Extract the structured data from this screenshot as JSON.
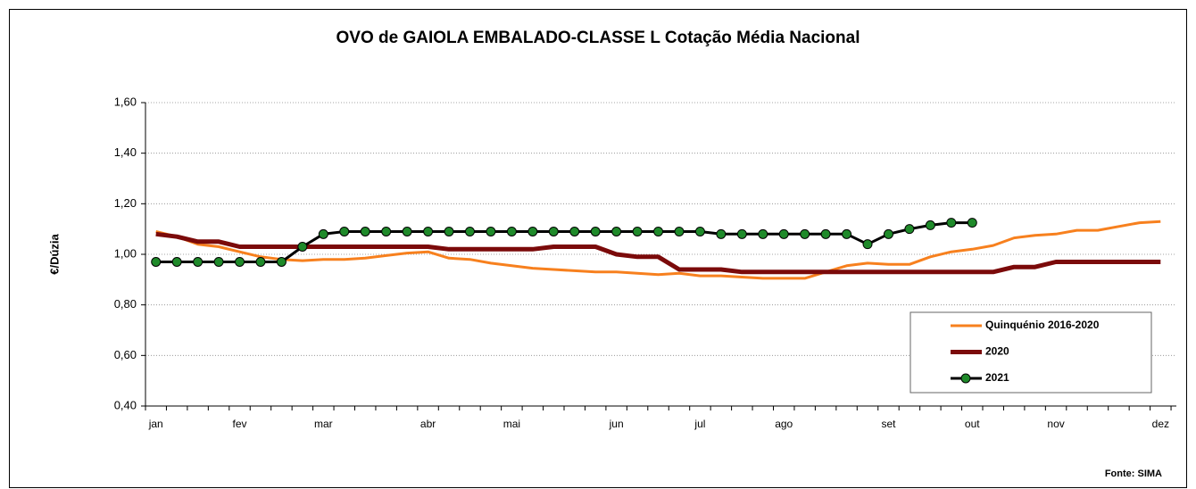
{
  "chart_data": {
    "type": "line",
    "title": "OVO de GAIOLA EMBALADO-CLASSE L  Cotação Média Nacional",
    "y_label": "€/Dúzia",
    "source": "Fonte: SIMA",
    "categories": [
      "jan",
      null,
      null,
      null,
      "fev",
      null,
      null,
      null,
      "mar",
      null,
      null,
      null,
      null,
      "abr",
      null,
      null,
      null,
      "mai",
      null,
      null,
      null,
      null,
      "jun",
      null,
      null,
      null,
      "jul",
      null,
      null,
      null,
      "ago",
      null,
      null,
      null,
      null,
      "set",
      null,
      null,
      null,
      "out",
      null,
      null,
      null,
      "nov",
      null,
      null,
      null,
      null,
      "dez"
    ],
    "series": [
      {
        "name": "Quinquénio 2016-2020",
        "color": "#f7801e",
        "width": 3,
        "values": [
          1.09,
          1.07,
          1.04,
          1.03,
          1.01,
          0.99,
          0.98,
          0.975,
          0.98,
          0.98,
          0.985,
          0.995,
          1.005,
          1.01,
          0.985,
          0.98,
          0.965,
          0.955,
          0.945,
          0.94,
          0.935,
          0.93,
          0.93,
          0.925,
          0.92,
          0.925,
          0.915,
          0.915,
          0.91,
          0.905,
          0.905,
          0.905,
          0.93,
          0.955,
          0.965,
          0.96,
          0.96,
          0.99,
          1.01,
          1.02,
          1.035,
          1.065,
          1.075,
          1.08,
          1.095,
          1.095,
          1.11,
          1.125,
          1.13
        ]
      },
      {
        "name": "2020",
        "color": "#7b0a0a",
        "width": 5,
        "values": [
          1.08,
          1.07,
          1.05,
          1.05,
          1.03,
          1.03,
          1.03,
          1.03,
          1.03,
          1.03,
          1.03,
          1.03,
          1.03,
          1.03,
          1.02,
          1.02,
          1.02,
          1.02,
          1.02,
          1.03,
          1.03,
          1.03,
          1.0,
          0.99,
          0.99,
          0.94,
          0.94,
          0.94,
          0.93,
          0.93,
          0.93,
          0.93,
          0.93,
          0.93,
          0.93,
          0.93,
          0.93,
          0.93,
          0.93,
          0.93,
          0.93,
          0.95,
          0.95,
          0.97,
          0.97,
          0.97,
          0.97,
          0.97,
          0.97
        ]
      },
      {
        "name": "2021",
        "color": "#000000",
        "marker_color": "#1f8a2a",
        "width": 3,
        "values": [
          0.97,
          0.97,
          0.97,
          0.97,
          0.97,
          0.97,
          0.97,
          1.03,
          1.08,
          1.09,
          1.09,
          1.09,
          1.09,
          1.09,
          1.09,
          1.09,
          1.09,
          1.09,
          1.09,
          1.09,
          1.09,
          1.09,
          1.09,
          1.09,
          1.09,
          1.09,
          1.09,
          1.08,
          1.08,
          1.08,
          1.08,
          1.08,
          1.08,
          1.08,
          1.04,
          1.08,
          1.1,
          1.115,
          1.125,
          1.125,
          null,
          null,
          null,
          null,
          null,
          null,
          null,
          null,
          null
        ]
      }
    ],
    "ylim": [
      0.4,
      1.6
    ],
    "yticks": [
      {
        "value": 0.4,
        "label": "0,40"
      },
      {
        "value": 0.6,
        "label": "0,60"
      },
      {
        "value": 0.8,
        "label": "0,80"
      },
      {
        "value": 1.0,
        "label": "1,00"
      },
      {
        "value": 1.2,
        "label": "1,20"
      },
      {
        "value": 1.4,
        "label": "1,40"
      },
      {
        "value": 1.6,
        "label": "1,60"
      }
    ],
    "grid": true,
    "legend": "lower right"
  }
}
